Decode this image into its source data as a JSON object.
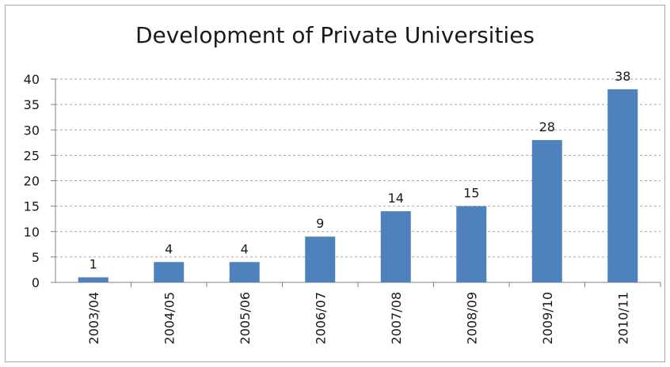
{
  "chart_data": {
    "type": "bar",
    "title": "Development of Private Universities",
    "categories": [
      "2003/04",
      "2004/05",
      "2005/06",
      "2006/07",
      "2007/08",
      "2008/09",
      "2009/10",
      "2010/11"
    ],
    "values": [
      1,
      4,
      4,
      9,
      14,
      15,
      28,
      38
    ],
    "ylim": [
      0,
      40
    ],
    "yticks": [
      0,
      5,
      10,
      15,
      20,
      25,
      30,
      35,
      40
    ],
    "grid": true,
    "bar_color": "#4f81bd",
    "grid_color": "#a6a6a6",
    "legend": "none"
  }
}
